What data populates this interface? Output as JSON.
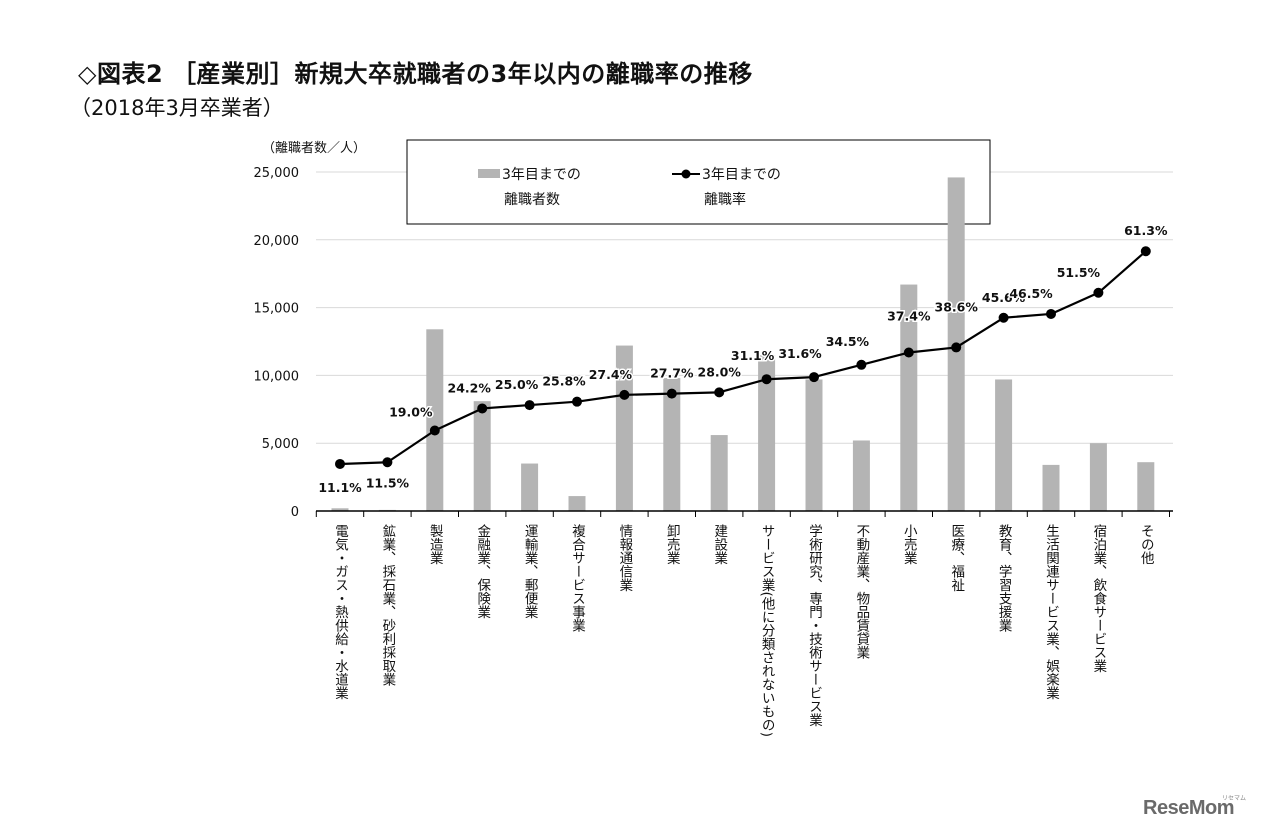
{
  "title": "◇図表2 ［産業別］新規大卒就職者の3年以内の離職率の推移",
  "subtitle": "（2018年3月卒業者）",
  "watermark": "ReseMom",
  "watermark_sub": "リセマム",
  "colors": {
    "bar": "#b4b4b4",
    "line": "#000000",
    "gridline": "#d9d9d9",
    "axis": "#000000"
  },
  "chart_data": {
    "type": "bar",
    "ylabel": "（離職者数／人）",
    "ylim": [
      0,
      25000
    ],
    "yticks": [
      0,
      5000,
      10000,
      15000,
      20000,
      25000
    ],
    "ytick_labels": [
      "0",
      "5,000",
      "10,000",
      "15,000",
      "20,000",
      "25,000"
    ],
    "grid": true,
    "legend_position": "top-center",
    "categories": [
      "電気・ガス・熱供給・水道業",
      "鉱業、採石業、砂利採取業",
      "製造業",
      "金融業、保険業",
      "運輸業、郵便業",
      "複合サービス事業",
      "情報通信業",
      "卸売業",
      "建設業",
      "サービス業(他に分類されないもの)",
      "学術研究、専門・技術サービス業",
      "不動産業、物品賃貸業",
      "小売業",
      "医療、福祉",
      "教育、学習支援業",
      "生活関連サービス業、娯楽業",
      "宿泊業、飲食サービス業",
      "その他"
    ],
    "series": [
      {
        "name": "3年目までの離職者数",
        "legend_lines": [
          "3年目までの",
          "離職者数"
        ],
        "kind": "bar",
        "axis": "left",
        "values": [
          200,
          80,
          13400,
          8100,
          3500,
          1100,
          12200,
          9800,
          5600,
          11500,
          9700,
          5200,
          16700,
          24600,
          9700,
          3400,
          5000,
          3600
        ]
      },
      {
        "name": "3年目までの離職率",
        "legend_lines": [
          "3年目までの",
          "離職率"
        ],
        "kind": "line",
        "axis": "right",
        "unit": "%",
        "ylim": [
          0,
          80
        ],
        "values": [
          11.1,
          11.5,
          19.0,
          24.2,
          25.0,
          25.8,
          27.4,
          27.7,
          28.0,
          31.1,
          31.6,
          34.5,
          37.4,
          38.6,
          45.6,
          46.5,
          51.5,
          61.3
        ],
        "labels": [
          "11.1%",
          "11.5%",
          "19.0%",
          "24.2%",
          "25.0%",
          "25.8%",
          "27.4%",
          "27.7%",
          "28.0%",
          "31.1%",
          "31.6%",
          "34.5%",
          "37.4%",
          "38.6%",
          "45.6%",
          "46.5%",
          "51.5%",
          "61.3%"
        ]
      }
    ]
  }
}
